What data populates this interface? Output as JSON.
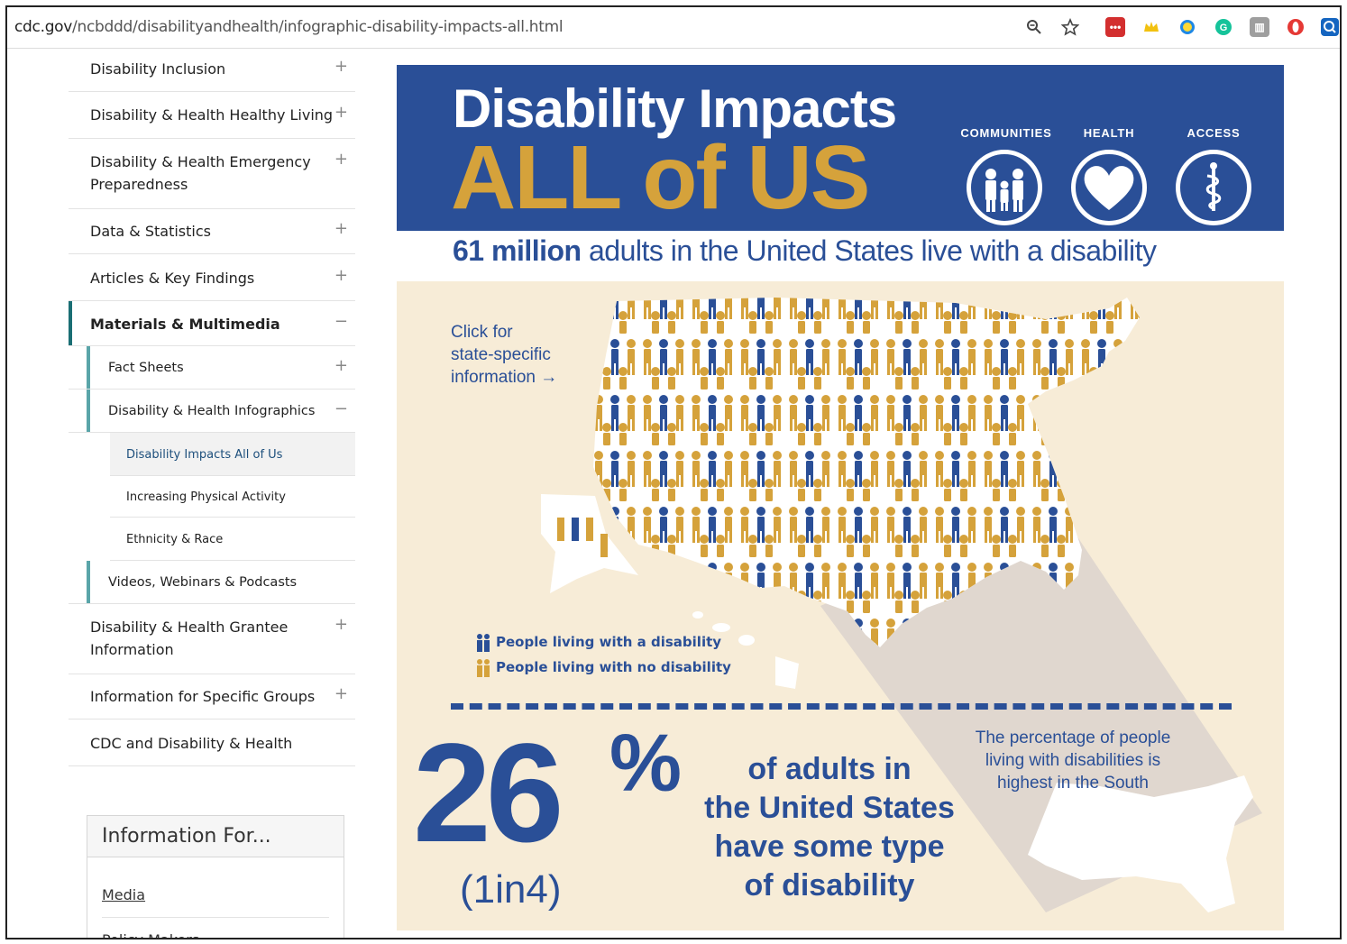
{
  "browser": {
    "url_domain": "cdc.gov",
    "url_path": "/ncbddd/disabilityandhealth/infographic-disability-impacts-all.html"
  },
  "sidebar": {
    "items": [
      {
        "label": "Disability Inclusion",
        "symbol": "+"
      },
      {
        "label": "Disability & Health Healthy Living",
        "symbol": "+"
      },
      {
        "label_line1": "Disability & Health Emergency",
        "label_line2": "Preparedness",
        "symbol": "+"
      },
      {
        "label": "Data & Statistics",
        "symbol": "+"
      },
      {
        "label": "Articles & Key Findings",
        "symbol": "+"
      },
      {
        "label": "Materials & Multimedia",
        "symbol": "−"
      },
      {
        "label": "Fact Sheets",
        "symbol": "+"
      },
      {
        "label": "Disability & Health Infographics",
        "symbol": "−"
      },
      {
        "label": "Disability Impacts All of Us"
      },
      {
        "label": "Increasing Physical Activity"
      },
      {
        "label": "Ethnicity & Race"
      },
      {
        "label": "Videos, Webinars & Podcasts"
      },
      {
        "label_line1": "Disability & Health Grantee",
        "label_line2": "Information",
        "symbol": "+"
      },
      {
        "label": "Information for Specific Groups",
        "symbol": "+"
      },
      {
        "label": "CDC and Disability & Health"
      }
    ],
    "info_box": {
      "title": "Information For...",
      "links": [
        "Media",
        "Policy Makers"
      ]
    }
  },
  "infographic": {
    "title_line1": "Disability Impacts",
    "title_line2": "ALL of US",
    "pillars": [
      "COMMUNITIES",
      "HEALTH",
      "ACCESS"
    ],
    "headline_bold": "61 million",
    "headline_rest": " adults in the United States live with a disability",
    "click_text": [
      "Click for",
      "state-specific",
      "information →"
    ],
    "legend": [
      "People living with a disability",
      "People living with no disability"
    ],
    "big_percent": "26",
    "percent_symbol": "%",
    "ratio": "(1in4)",
    "adults_text": [
      "of adults in",
      "the United States",
      "have some type",
      "of disability"
    ],
    "south_text": [
      "The percentage of people",
      "living with disabilities is",
      "highest in the South"
    ],
    "colors": {
      "navy": "#2a4f97",
      "gold": "#d5a23b",
      "cream": "#f7ecd7"
    }
  }
}
